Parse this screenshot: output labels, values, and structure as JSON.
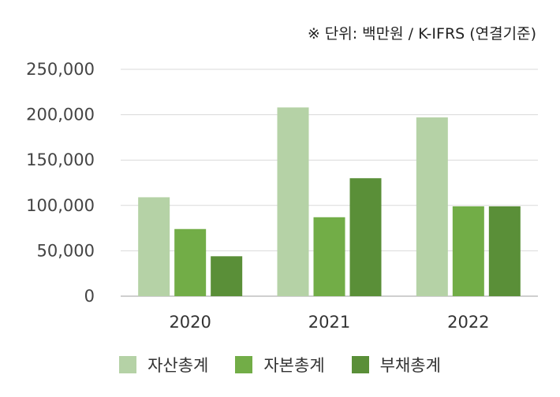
{
  "unit_note": "※ 단위: 백만원 / K-IFRS (연결기준)",
  "chart_data": {
    "type": "bar",
    "categories": [
      "2020",
      "2021",
      "2022"
    ],
    "series": [
      {
        "name": "자산총계",
        "color": "#b5d2a6",
        "values": [
          109000,
          208000,
          197000
        ]
      },
      {
        "name": "자본총계",
        "color": "#72ad47",
        "values": [
          74000,
          87000,
          99000
        ]
      },
      {
        "name": "부채총계",
        "color": "#5a8f38",
        "values": [
          44000,
          130000,
          99000
        ]
      }
    ],
    "yticks": [
      "0",
      "50,000",
      "100,000",
      "150,000",
      "200,000",
      "250,000"
    ],
    "ylim": [
      0,
      250000
    ],
    "grid": true,
    "legend_position": "bottom"
  }
}
